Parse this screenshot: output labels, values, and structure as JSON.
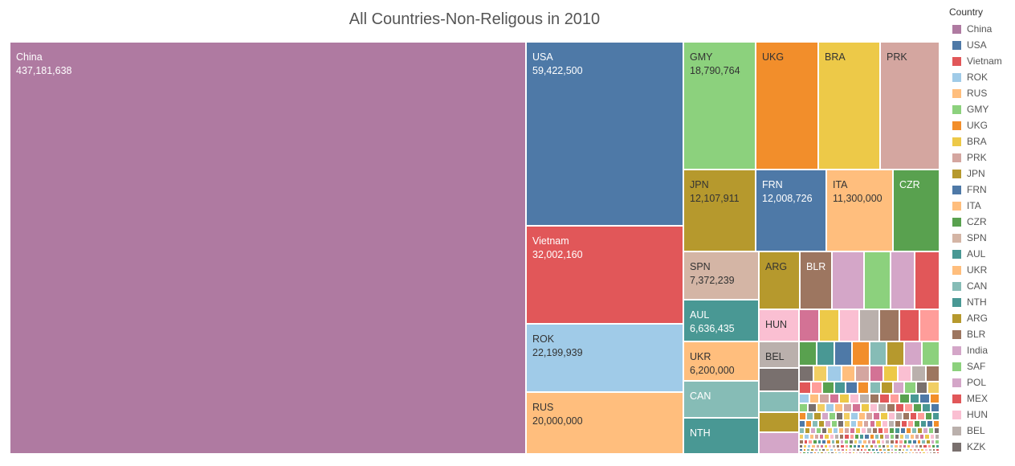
{
  "chart_data": {
    "type": "treemap",
    "title": "All Countries-Non-Religous in 2010",
    "legend": {
      "title": "Country",
      "position": "right"
    },
    "items": [
      {
        "name": "China",
        "value": 437181638,
        "value_label": "437,181,638",
        "color": "#af7aa1"
      },
      {
        "name": "USA",
        "value": 59422500,
        "value_label": "59,422,500",
        "color": "#4e79a7"
      },
      {
        "name": "Vietnam",
        "value": 32002160,
        "value_label": "32,002,160",
        "color": "#e15759"
      },
      {
        "name": "ROK",
        "value": 22199939,
        "value_label": "22,199,939",
        "color": "#a0cbe8"
      },
      {
        "name": "RUS",
        "value": 20000000,
        "value_label": "20,000,000",
        "color": "#ffbe7d"
      },
      {
        "name": "GMY",
        "value": 18790764,
        "value_label": "18,790,764",
        "color": "#8cd17d"
      },
      {
        "name": "UKG",
        "value": 16500000,
        "color": "#f28e2b"
      },
      {
        "name": "BRA",
        "value": 15300000,
        "color": "#edc948"
      },
      {
        "name": "PRK",
        "value": 14700000,
        "color": "#d4a6a0"
      },
      {
        "name": "JPN",
        "value": 12107911,
        "value_label": "12,107,911",
        "color": "#b6992d"
      },
      {
        "name": "FRN",
        "value": 12008726,
        "value_label": "12,008,726",
        "color": "#4e79a7"
      },
      {
        "name": "ITA",
        "value": 11300000,
        "value_label": "11,300,000",
        "color": "#ffbe7d"
      },
      {
        "name": "CZR",
        "value": 7900000,
        "color": "#59a14f"
      },
      {
        "name": "SPN",
        "value": 7372239,
        "value_label": "7,372,239",
        "color": "#d4b5a5"
      },
      {
        "name": "AUL",
        "value": 6636435,
        "value_label": "6,636,435",
        "color": "#499894"
      },
      {
        "name": "UKR",
        "value": 6200000,
        "value_label": "6,200,000",
        "color": "#ffbe7d"
      },
      {
        "name": "CAN",
        "value": 5500000,
        "color": "#86bcb6"
      },
      {
        "name": "NTH",
        "value": 5400000,
        "color": "#499894"
      },
      {
        "name": "ARG",
        "value": 4400000,
        "color": "#b6992d"
      },
      {
        "name": "BLR",
        "value": 4400000,
        "color": "#9d7660"
      },
      {
        "name": "India",
        "value": 4200000,
        "color": "#d4a6c8"
      },
      {
        "name": "SAF",
        "value": 4100000,
        "color": "#8cd17d"
      },
      {
        "name": "POL",
        "value": 3800000,
        "color": "#d4a6c8"
      },
      {
        "name": "MEX",
        "value": 3700000,
        "color": "#e15759"
      },
      {
        "name": "HUN",
        "value": 3400000,
        "color": "#fabfd2"
      },
      {
        "name": "BEL",
        "value": 2800000,
        "color": "#bab0ac"
      },
      {
        "name": "KZK",
        "value": 2700000,
        "color": "#79706e"
      }
    ]
  },
  "colors": {
    "tail": [
      "#d37295",
      "#edc948",
      "#fabfd2",
      "#bab0ac",
      "#9d7660",
      "#e15759",
      "#ff9d9a",
      "#59a14f",
      "#499894",
      "#4e79a7",
      "#f28e2b",
      "#86bcb6",
      "#b6992d",
      "#d4a6c8",
      "#8cd17d",
      "#79706e",
      "#f1ce63",
      "#a0cbe8",
      "#ffbe7d",
      "#d4a6a0"
    ]
  }
}
